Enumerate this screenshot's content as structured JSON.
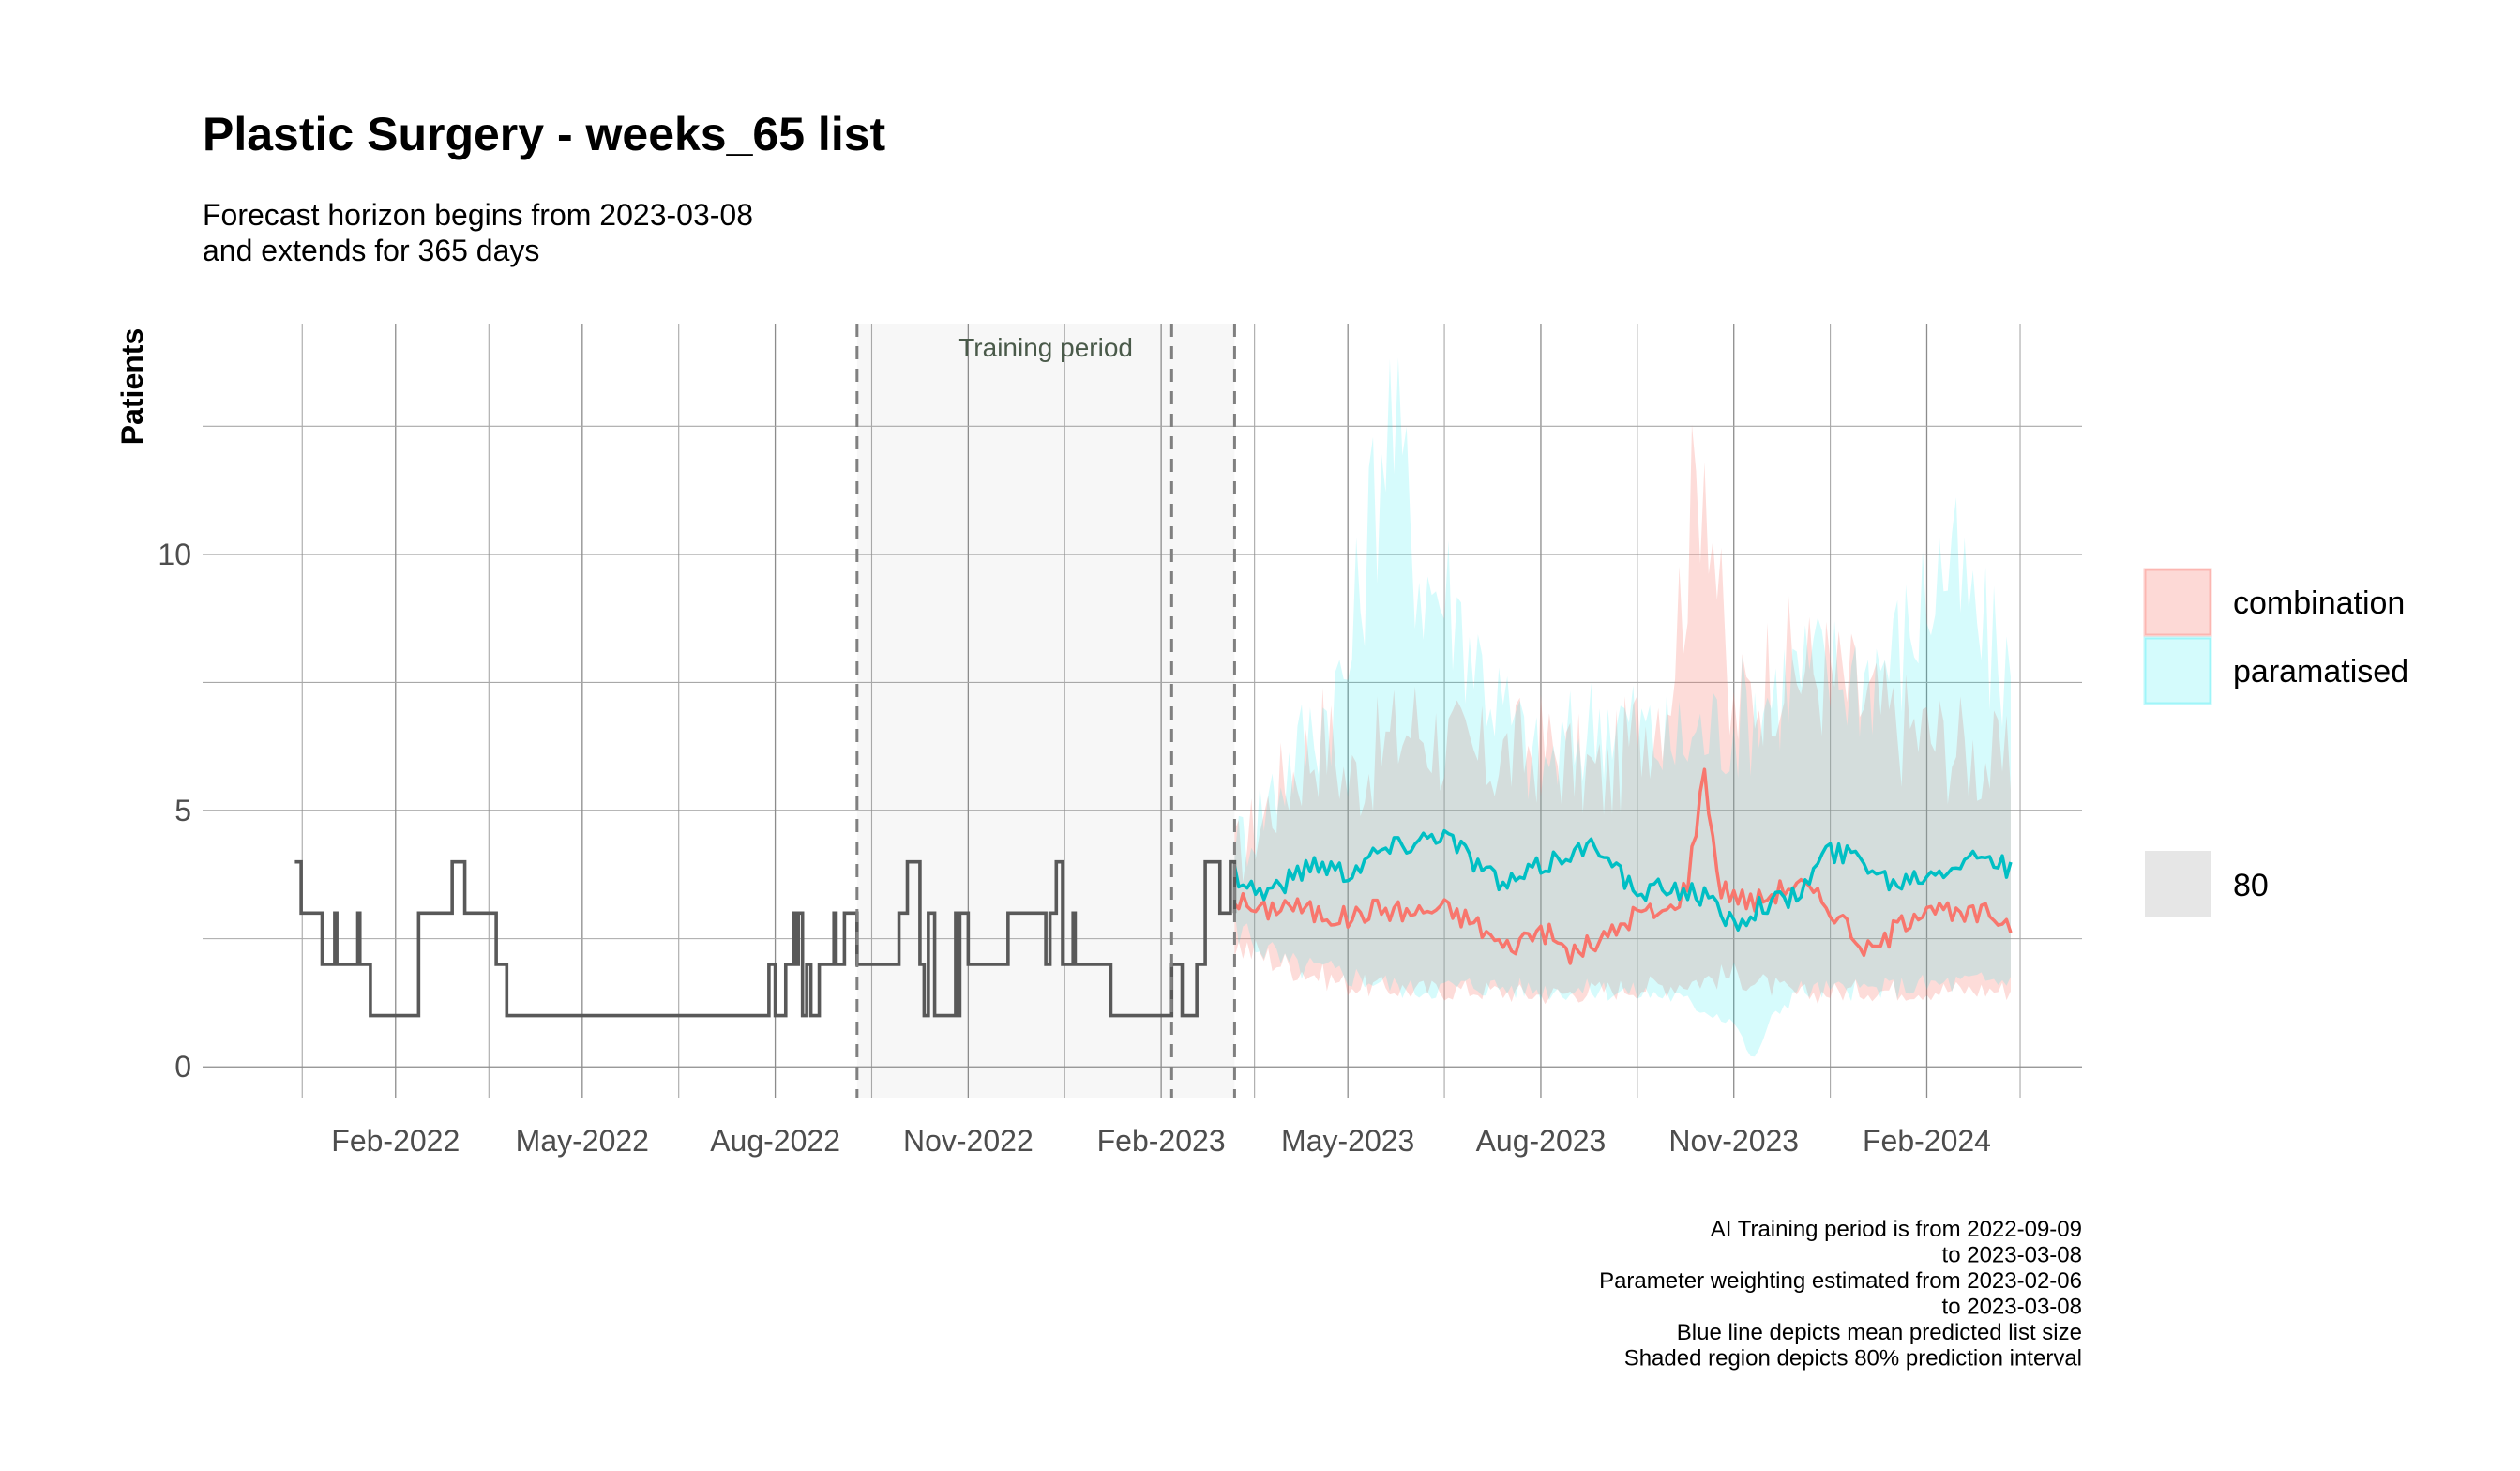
{
  "title": "Plastic Surgery - weeks_65 list",
  "subtitle_line1": "Forecast horizon begins from 2023-03-08",
  "subtitle_line2": "and extends for 365 days",
  "caption_lines": [
    "AI Training period is from 2022-09-09",
    "to 2023-03-08",
    "Parameter weighting estimated from 2023-02-06",
    "to 2023-03-08",
    "Blue line depicts mean predicted list size",
    "Shaded region depicts 80% prediction interval"
  ],
  "chart_data": {
    "type": "line",
    "ylabel": "Patients",
    "xlabel": "",
    "x_type": "date",
    "xlim": [
      "2021-11-01",
      "2024-04-15"
    ],
    "ylim": [
      -0.6,
      14.5
    ],
    "x_tick_labels": [
      {
        "date": "2022-02-01",
        "label": "Feb-2022"
      },
      {
        "date": "2022-05-01",
        "label": "May-2022"
      },
      {
        "date": "2022-08-01",
        "label": "Aug-2022"
      },
      {
        "date": "2022-11-01",
        "label": "Nov-2022"
      },
      {
        "date": "2023-02-01",
        "label": "Feb-2023"
      },
      {
        "date": "2023-05-01",
        "label": "May-2023"
      },
      {
        "date": "2023-08-01",
        "label": "Aug-2023"
      },
      {
        "date": "2023-11-01",
        "label": "Nov-2023"
      },
      {
        "date": "2024-02-01",
        "label": "Feb-2024"
      }
    ],
    "y_ticks": [
      0,
      5,
      10
    ],
    "grid": true,
    "training_period": {
      "start": "2022-09-09",
      "end": "2023-03-08",
      "label": "Training period"
    },
    "vlines": [
      "2022-09-09",
      "2023-02-06",
      "2023-03-08"
    ],
    "observed": [
      [
        "2021-12-15",
        4
      ],
      [
        "2021-12-18",
        3
      ],
      [
        "2021-12-28",
        2
      ],
      [
        "2022-01-03",
        3
      ],
      [
        "2022-01-04",
        2
      ],
      [
        "2022-01-14",
        3
      ],
      [
        "2022-01-15",
        2
      ],
      [
        "2022-01-20",
        1
      ],
      [
        "2022-02-12",
        3
      ],
      [
        "2022-02-28",
        4
      ],
      [
        "2022-03-06",
        3
      ],
      [
        "2022-03-21",
        2
      ],
      [
        "2022-03-26",
        1
      ],
      [
        "2022-07-29",
        2
      ],
      [
        "2022-08-01",
        1
      ],
      [
        "2022-08-06",
        2
      ],
      [
        "2022-08-10",
        3
      ],
      [
        "2022-08-11",
        2
      ],
      [
        "2022-08-12",
        3
      ],
      [
        "2022-08-14",
        1
      ],
      [
        "2022-08-16",
        2
      ],
      [
        "2022-08-18",
        1
      ],
      [
        "2022-08-22",
        2
      ],
      [
        "2022-08-29",
        3
      ],
      [
        "2022-08-30",
        2
      ],
      [
        "2022-09-03",
        3
      ],
      [
        "2022-09-09",
        2
      ],
      [
        "2022-09-29",
        3
      ],
      [
        "2022-10-03",
        4
      ],
      [
        "2022-10-09",
        2
      ],
      [
        "2022-10-11",
        1
      ],
      [
        "2022-10-13",
        3
      ],
      [
        "2022-10-16",
        1
      ],
      [
        "2022-10-26",
        3
      ],
      [
        "2022-10-27",
        1
      ],
      [
        "2022-10-28",
        3
      ],
      [
        "2022-11-01",
        2
      ],
      [
        "2022-11-20",
        3
      ],
      [
        "2022-12-08",
        2
      ],
      [
        "2022-12-10",
        3
      ],
      [
        "2022-12-13",
        4
      ],
      [
        "2022-12-16",
        2
      ],
      [
        "2022-12-21",
        3
      ],
      [
        "2022-12-22",
        2
      ],
      [
        "2023-01-08",
        1
      ],
      [
        "2023-01-30",
        1
      ],
      [
        "2023-02-06",
        2
      ],
      [
        "2023-02-11",
        1
      ],
      [
        "2023-02-18",
        2
      ],
      [
        "2023-02-22",
        4
      ],
      [
        "2023-03-01",
        3
      ],
      [
        "2023-03-06",
        4
      ],
      [
        "2023-03-08",
        3
      ]
    ],
    "series": [
      {
        "name": "combination",
        "color": "#f8766d",
        "mean": [
          [
            "2023-03-08",
            3.3
          ],
          [
            "2023-03-20",
            3.0
          ],
          [
            "2023-04-01",
            3.2
          ],
          [
            "2023-04-15",
            3.0
          ],
          [
            "2023-05-01",
            2.9
          ],
          [
            "2023-05-15",
            3.1
          ],
          [
            "2023-06-01",
            3.0
          ],
          [
            "2023-06-15",
            3.1
          ],
          [
            "2023-07-01",
            2.8
          ],
          [
            "2023-07-15",
            2.3
          ],
          [
            "2023-08-01",
            2.7
          ],
          [
            "2023-08-15",
            2.2
          ],
          [
            "2023-09-01",
            2.5
          ],
          [
            "2023-09-15",
            3.0
          ],
          [
            "2023-10-01",
            3.0
          ],
          [
            "2023-10-10",
            3.6
          ],
          [
            "2023-10-18",
            5.8
          ],
          [
            "2023-10-25",
            3.5
          ],
          [
            "2023-11-10",
            3.2
          ],
          [
            "2023-12-01",
            3.6
          ],
          [
            "2023-12-20",
            3.0
          ],
          [
            "2024-01-05",
            2.2
          ],
          [
            "2024-01-20",
            2.8
          ],
          [
            "2024-02-01",
            3.2
          ],
          [
            "2024-02-15",
            2.9
          ],
          [
            "2024-03-01",
            3.0
          ],
          [
            "2024-03-12",
            2.8
          ]
        ],
        "lower": [
          [
            "2023-03-08",
            2.4
          ],
          [
            "2023-04-01",
            2.0
          ],
          [
            "2023-05-01",
            1.6
          ],
          [
            "2023-06-01",
            1.5
          ],
          [
            "2023-07-01",
            1.5
          ],
          [
            "2023-08-01",
            1.4
          ],
          [
            "2023-09-01",
            1.5
          ],
          [
            "2023-10-01",
            1.6
          ],
          [
            "2023-11-01",
            1.8
          ],
          [
            "2023-12-01",
            1.4
          ],
          [
            "2024-01-01",
            1.5
          ],
          [
            "2024-02-01",
            1.5
          ],
          [
            "2024-03-12",
            1.5
          ]
        ],
        "upper": [
          [
            "2023-03-08",
            4.2
          ],
          [
            "2023-04-01",
            5.8
          ],
          [
            "2023-04-20",
            6.8
          ],
          [
            "2023-05-01",
            5.8
          ],
          [
            "2023-06-01",
            7.0
          ],
          [
            "2023-07-01",
            6.2
          ],
          [
            "2023-08-01",
            6.5
          ],
          [
            "2023-09-01",
            5.8
          ],
          [
            "2023-10-01",
            7.8
          ],
          [
            "2023-10-18",
            13.0
          ],
          [
            "2023-10-30",
            7.0
          ],
          [
            "2023-11-20",
            8.2
          ],
          [
            "2023-12-15",
            8.0
          ],
          [
            "2024-01-15",
            7.0
          ],
          [
            "2024-02-15",
            6.5
          ],
          [
            "2024-03-12",
            6.0
          ]
        ]
      },
      {
        "name": "paramatised",
        "color": "#00bfc4",
        "mean": [
          [
            "2023-03-08",
            3.8
          ],
          [
            "2023-03-20",
            3.4
          ],
          [
            "2023-04-01",
            3.6
          ],
          [
            "2023-04-15",
            4.0
          ],
          [
            "2023-05-01",
            3.8
          ],
          [
            "2023-05-15",
            4.2
          ],
          [
            "2023-06-01",
            4.4
          ],
          [
            "2023-06-15",
            4.6
          ],
          [
            "2023-07-01",
            4.0
          ],
          [
            "2023-07-15",
            3.5
          ],
          [
            "2023-08-01",
            3.9
          ],
          [
            "2023-08-15",
            4.2
          ],
          [
            "2023-09-01",
            4.3
          ],
          [
            "2023-09-15",
            3.3
          ],
          [
            "2023-10-01",
            3.5
          ],
          [
            "2023-10-15",
            3.4
          ],
          [
            "2023-11-01",
            2.8
          ],
          [
            "2023-11-15",
            3.2
          ],
          [
            "2023-12-01",
            3.3
          ],
          [
            "2023-12-15",
            4.2
          ],
          [
            "2024-01-01",
            4.1
          ],
          [
            "2024-01-15",
            3.6
          ],
          [
            "2024-02-01",
            3.8
          ],
          [
            "2024-02-15",
            4.0
          ],
          [
            "2024-03-01",
            4.2
          ],
          [
            "2024-03-12",
            3.8
          ]
        ],
        "lower": [
          [
            "2023-03-08",
            2.8
          ],
          [
            "2023-04-01",
            2.0
          ],
          [
            "2023-05-01",
            1.8
          ],
          [
            "2023-06-01",
            1.5
          ],
          [
            "2023-07-01",
            1.6
          ],
          [
            "2023-08-01",
            1.5
          ],
          [
            "2023-09-01",
            1.5
          ],
          [
            "2023-10-01",
            1.4
          ],
          [
            "2023-11-01",
            0.9
          ],
          [
            "2023-11-10",
            0.1
          ],
          [
            "2023-11-20",
            1.0
          ],
          [
            "2023-12-01",
            1.5
          ],
          [
            "2024-01-01",
            1.5
          ],
          [
            "2024-02-01",
            1.6
          ],
          [
            "2024-03-12",
            1.7
          ]
        ],
        "upper": [
          [
            "2023-03-08",
            4.4
          ],
          [
            "2023-04-01",
            6.0
          ],
          [
            "2023-05-01",
            8.0
          ],
          [
            "2023-05-20",
            13.5
          ],
          [
            "2023-06-05",
            10.0
          ],
          [
            "2023-06-20",
            9.5
          ],
          [
            "2023-07-10",
            7.5
          ],
          [
            "2023-08-01",
            6.0
          ],
          [
            "2023-09-01",
            7.2
          ],
          [
            "2023-10-01",
            6.5
          ],
          [
            "2023-11-01",
            7.0
          ],
          [
            "2023-12-01",
            8.0
          ],
          [
            "2024-01-01",
            8.0
          ],
          [
            "2024-01-20",
            8.5
          ],
          [
            "2024-02-10",
            10.3
          ],
          [
            "2024-03-01",
            8.5
          ],
          [
            "2024-03-12",
            8.0
          ]
        ]
      }
    ],
    "legend": {
      "position": "right",
      "entries": [
        "combination",
        "paramatised"
      ],
      "interval_title": "80"
    }
  }
}
